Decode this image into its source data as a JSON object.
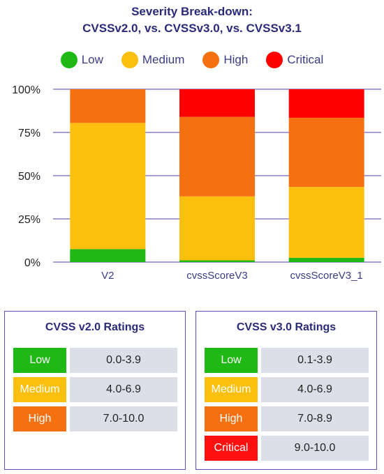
{
  "title_line1": "Severity Break-down:",
  "title_line2": "CVSSv2.0, vs. CVSSv3.0, vs. CVSSv3.1",
  "legend": [
    {
      "label": "Low",
      "color": "#1fb814"
    },
    {
      "label": "Medium",
      "color": "#fbbf0e"
    },
    {
      "label": "High",
      "color": "#f57011"
    },
    {
      "label": "Critical",
      "color": "#ff0000"
    }
  ],
  "chart_data": {
    "type": "bar",
    "stacked": true,
    "categories": [
      "V2",
      "cvssScoreV3",
      "cvssScoreV3_1"
    ],
    "series": [
      {
        "name": "Low",
        "color": "#1fb814",
        "values": [
          7.5,
          1,
          2.5
        ]
      },
      {
        "name": "Medium",
        "color": "#fbbf0e",
        "values": [
          73,
          37,
          41
        ]
      },
      {
        "name": "High",
        "color": "#f57011",
        "values": [
          19.5,
          46,
          40
        ]
      },
      {
        "name": "Critical",
        "color": "#ff0000",
        "values": [
          0,
          16,
          16.5
        ]
      }
    ],
    "ylim": [
      0,
      100
    ],
    "yticks": [
      "0%",
      "25%",
      "50%",
      "75%",
      "100%"
    ],
    "grid": true,
    "legend_position": "top"
  },
  "panels": [
    {
      "title": "CVSS v2.0 Ratings",
      "rows": [
        {
          "label": "Low",
          "range": "0.0-3.9",
          "color": "#1fb814"
        },
        {
          "label": "Medium",
          "range": "4.0-6.9",
          "color": "#fbbf0e"
        },
        {
          "label": "High",
          "range": "7.0-10.0",
          "color": "#f57011"
        }
      ]
    },
    {
      "title": "CVSS v3.0 Ratings",
      "rows": [
        {
          "label": "Low",
          "range": "0.1-3.9",
          "color": "#1fb814"
        },
        {
          "label": "Medium",
          "range": "4.0-6.9",
          "color": "#fbbf0e"
        },
        {
          "label": "High",
          "range": "7.0-8.9",
          "color": "#f57011"
        },
        {
          "label": "Critical",
          "range": "9.0-10.0",
          "color": "#ff1010"
        }
      ]
    }
  ]
}
